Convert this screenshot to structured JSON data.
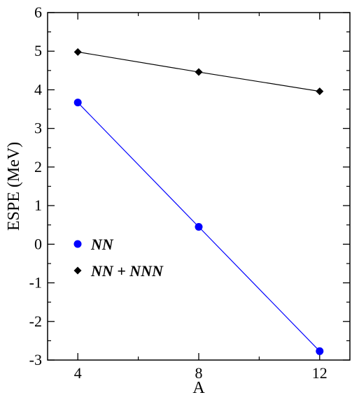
{
  "chart_data": {
    "type": "line",
    "xlabel": "A",
    "ylabel": "ESPE (MeV)",
    "x": [
      4,
      8,
      12
    ],
    "xticks": [
      4,
      8,
      12
    ],
    "xlim": [
      3,
      13
    ],
    "ylim": [
      -3,
      6
    ],
    "yticks": [
      -3,
      -2,
      -1,
      0,
      1,
      2,
      3,
      4,
      5,
      6
    ],
    "yticklabels": [
      "-3",
      "-2",
      "-1",
      "0",
      "1",
      "2",
      "3",
      "4",
      "5",
      "6"
    ],
    "legend_position": "lower-left",
    "series": [
      {
        "name": "NN",
        "values": [
          3.67,
          0.45,
          -2.77
        ],
        "color": "#0000ff",
        "marker": "circle"
      },
      {
        "name": "NN + NNN",
        "values": [
          4.98,
          4.46,
          3.96
        ],
        "color": "#000000",
        "marker": "diamond"
      }
    ]
  }
}
